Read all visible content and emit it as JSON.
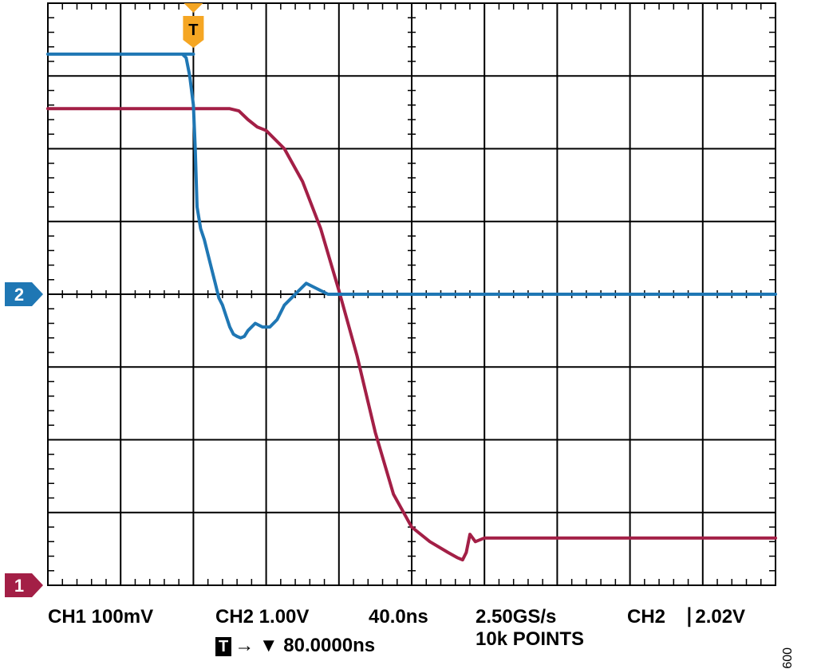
{
  "chart_data": {
    "type": "line",
    "x_unit": "ns",
    "y_unit": "div",
    "xlim": [
      -80,
      320
    ],
    "ylim": [
      -4,
      4
    ],
    "grid": true,
    "divisions": {
      "x": 10,
      "y": 8
    },
    "series": [
      {
        "name": "CH2",
        "color": "#1f77b4",
        "marker_label": "2",
        "marker_level": 0,
        "x": [
          -80,
          -40,
          0,
          -6,
          -4,
          -2,
          0,
          1,
          2,
          4,
          6,
          8,
          10,
          12,
          14,
          16,
          18,
          20,
          22,
          24,
          26,
          28,
          30,
          34,
          38,
          42,
          46,
          50,
          54,
          58,
          62,
          66,
          70,
          74,
          78,
          80,
          90,
          120,
          160,
          200,
          240,
          280,
          320
        ],
        "y": [
          3.3,
          3.3,
          3.3,
          3.3,
          3.25,
          3.0,
          2.6,
          2.0,
          1.2,
          0.9,
          0.75,
          0.55,
          0.35,
          0.15,
          -0.05,
          -0.15,
          -0.3,
          -0.45,
          -0.55,
          -0.58,
          -0.6,
          -0.58,
          -0.5,
          -0.4,
          -0.45,
          -0.45,
          -0.35,
          -0.15,
          -0.05,
          0.05,
          0.15,
          0.1,
          0.05,
          0.0,
          0.0,
          0.0,
          0.0,
          0.0,
          0.0,
          0.0,
          0.0,
          0.0,
          0.0
        ]
      },
      {
        "name": "CH1",
        "color": "#a31f46",
        "marker_label": "1",
        "marker_level": -4,
        "x": [
          -80,
          -20,
          0,
          20,
          25,
          30,
          35,
          40,
          50,
          60,
          70,
          80,
          90,
          100,
          110,
          120,
          130,
          140,
          145,
          148,
          150,
          152,
          155,
          160,
          180,
          200,
          240,
          280,
          320
        ],
        "y": [
          2.55,
          2.55,
          2.55,
          2.55,
          2.52,
          2.4,
          2.3,
          2.25,
          2.0,
          1.55,
          0.9,
          0.05,
          -0.85,
          -1.9,
          -2.75,
          -3.2,
          -3.4,
          -3.55,
          -3.62,
          -3.65,
          -3.55,
          -3.3,
          -3.4,
          -3.35,
          -3.35,
          -3.35,
          -3.35,
          -3.35,
          -3.35
        ]
      }
    ],
    "trigger": {
      "label": "T",
      "time_ns": 0
    }
  },
  "readout": {
    "ch1": "CH1  100mV",
    "ch2": "CH2  1.00V",
    "timebase": "40.0ns",
    "sample_rate": "2.50GS/s",
    "trigger_setting": "CH2 ⎹ 2.02V",
    "trigger_icon": "T",
    "trigger_position": "→ ▼ 80.0000ns",
    "record_length": "10k POINTS"
  },
  "figure_id": "009"
}
